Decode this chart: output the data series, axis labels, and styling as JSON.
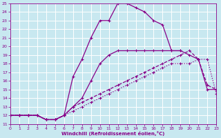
{
  "bg_color": "#c8e8f0",
  "line_color": "#880088",
  "grid_color": "#ffffff",
  "xlim": [
    0,
    23
  ],
  "ylim": [
    11,
    25
  ],
  "xticks": [
    0,
    1,
    2,
    3,
    4,
    5,
    6,
    7,
    8,
    9,
    10,
    11,
    12,
    13,
    14,
    15,
    16,
    17,
    18,
    19,
    20,
    21,
    22,
    23
  ],
  "yticks": [
    11,
    12,
    13,
    14,
    15,
    16,
    17,
    18,
    19,
    20,
    21,
    22,
    23,
    24,
    25
  ],
  "xlabel": "Windchill (Refroidissement éolien,°C)",
  "curves": [
    {
      "x": [
        0,
        1,
        2,
        3,
        4,
        5,
        6,
        7,
        8,
        9,
        10,
        11,
        12,
        13,
        14,
        15,
        16,
        17,
        18,
        19,
        20,
        21,
        22,
        23
      ],
      "y": [
        12,
        12,
        12,
        12,
        11.5,
        11.5,
        12,
        12.5,
        13,
        13.5,
        14,
        14.5,
        15,
        15.5,
        16,
        16.5,
        17,
        17.5,
        18,
        18,
        18,
        18.5,
        18.5,
        14.5
      ],
      "ls": "dotted",
      "lw": 0.9
    },
    {
      "x": [
        0,
        1,
        2,
        3,
        4,
        5,
        6,
        7,
        8,
        9,
        10,
        11,
        12,
        13,
        14,
        15,
        16,
        17,
        18,
        19,
        20,
        21,
        22,
        23
      ],
      "y": [
        12,
        12,
        12,
        12,
        11.5,
        11.5,
        12,
        13,
        13.5,
        14,
        14.5,
        15,
        15.5,
        16,
        16.5,
        17,
        17.5,
        18,
        18.5,
        19,
        19.5,
        18.5,
        15.5,
        15
      ],
      "ls": "dashed",
      "lw": 0.9
    },
    {
      "x": [
        0,
        1,
        2,
        3,
        4,
        5,
        6,
        7,
        8,
        9,
        10,
        11,
        12,
        13,
        14,
        15,
        16,
        17,
        18,
        19,
        20,
        21,
        22,
        23
      ],
      "y": [
        12,
        12,
        12,
        12,
        11.5,
        11.5,
        12,
        13,
        14,
        16,
        18,
        19,
        19.5,
        19.5,
        19.5,
        19.5,
        19.5,
        19.5,
        19.5,
        19.5,
        19,
        18.5,
        15,
        15
      ],
      "ls": "solid",
      "lw": 0.9
    },
    {
      "x": [
        0,
        1,
        2,
        3,
        4,
        5,
        6,
        7,
        8,
        9,
        10,
        11,
        12,
        13,
        14,
        15,
        16,
        17,
        18,
        19
      ],
      "y": [
        12,
        12,
        12,
        12,
        11.5,
        11.5,
        12,
        16.5,
        18.5,
        21,
        23,
        23,
        25,
        25,
        24.5,
        24,
        23,
        22.5,
        19.5,
        19.5
      ],
      "ls": "solid",
      "lw": 0.9
    }
  ]
}
